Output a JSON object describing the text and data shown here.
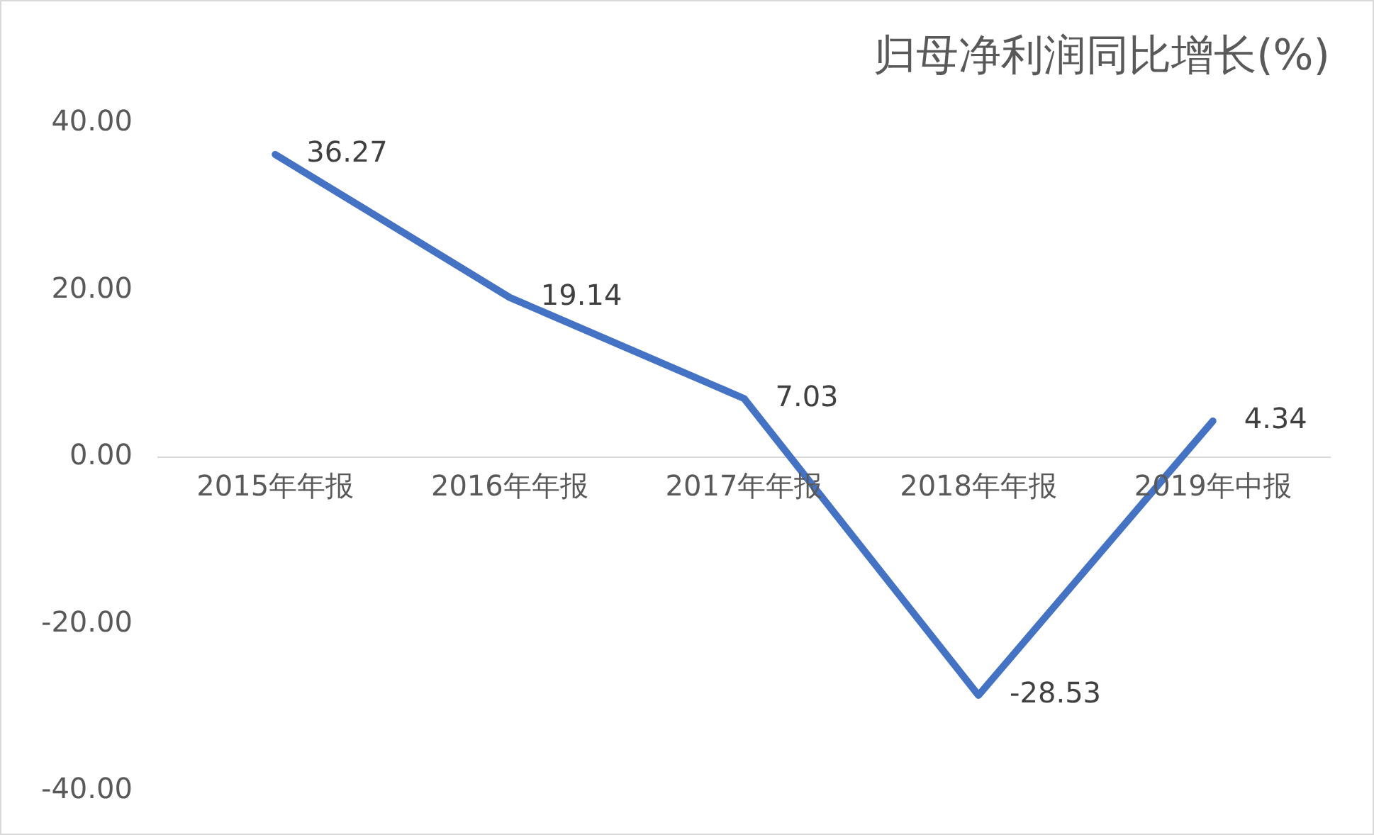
{
  "chart_data": {
    "type": "line",
    "title": "归母净利润同比增长(%)",
    "categories": [
      "2015年年报",
      "2016年年报",
      "2017年年报",
      "2018年年报",
      "2019年中报"
    ],
    "series": [
      {
        "color": "#4472c4",
        "values": [
          36.27,
          19.14,
          7.03,
          -28.53,
          4.34
        ]
      }
    ],
    "ylim": [
      -40,
      40
    ],
    "yticks": [
      {
        "value": -40,
        "label": "-40.00"
      },
      {
        "value": -20,
        "label": "-20.00"
      },
      {
        "value": 0,
        "label": "0.00"
      },
      {
        "value": 20,
        "label": "20.00"
      },
      {
        "value": 40,
        "label": "40.00"
      }
    ],
    "grid": false,
    "legend": false,
    "marker": "none",
    "line_style": "solid",
    "data_labels": true
  }
}
